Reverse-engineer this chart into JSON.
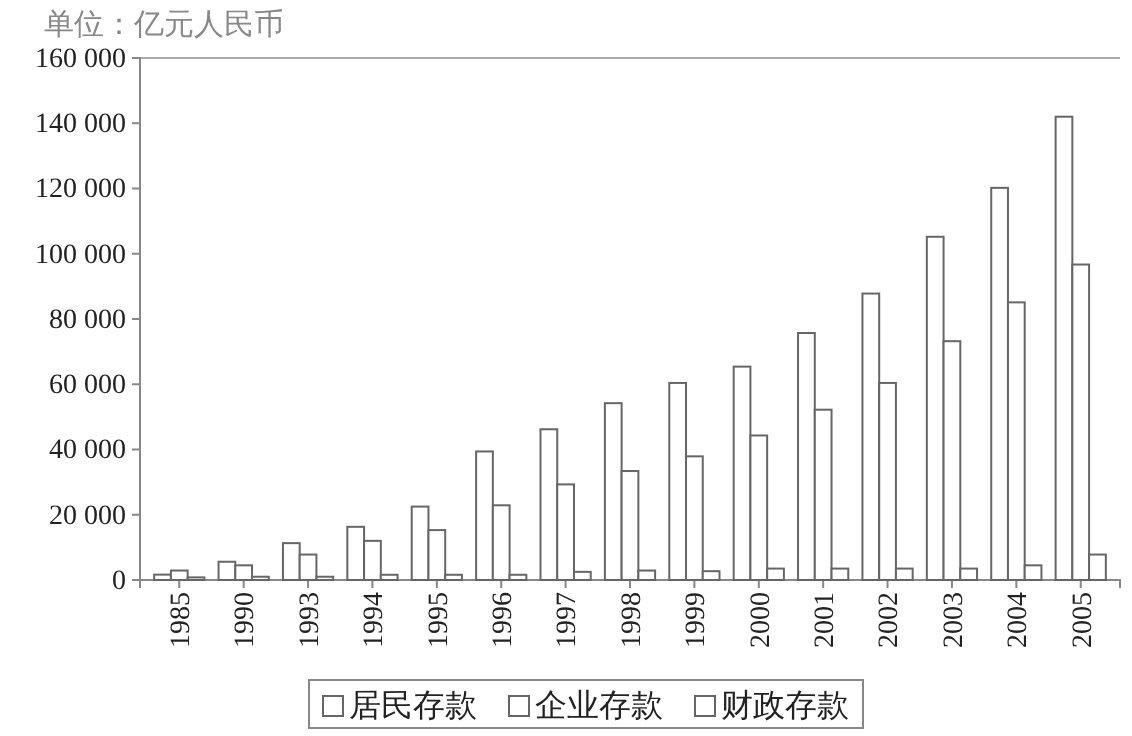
{
  "chart_data": {
    "type": "bar",
    "ylabel": "单位：亿元人民币",
    "categories": [
      "1985",
      "1990",
      "1993",
      "1994",
      "1995",
      "1996",
      "1997",
      "1998",
      "1999",
      "2000",
      "2001",
      "2002",
      "2003",
      "2004",
      "2005"
    ],
    "series": [
      {
        "name": "居民存款",
        "color": "#ffffff",
        "values": [
          1650,
          5600,
          11300,
          16300,
          22500,
          39400,
          46200,
          54200,
          60400,
          65400,
          75700,
          87800,
          105200,
          120200,
          142000
        ]
      },
      {
        "name": "企业存款",
        "color": "#ffffff",
        "values": [
          2900,
          4500,
          7800,
          12000,
          15300,
          22900,
          29300,
          33400,
          37900,
          44300,
          52200,
          60400,
          73200,
          85100,
          96700
        ]
      },
      {
        "name": "财政存款",
        "color": "#ffffff",
        "values": [
          800,
          1000,
          1000,
          1600,
          1600,
          1600,
          2500,
          2900,
          2700,
          3500,
          3500,
          3500,
          3500,
          4500,
          7800
        ]
      }
    ],
    "ylim": [
      0,
      160000
    ],
    "yticks": [
      {
        "value": 0,
        "label": "0"
      },
      {
        "value": 20000,
        "label": "20 000"
      },
      {
        "value": 40000,
        "label": "40 000"
      },
      {
        "value": 60000,
        "label": "60 000"
      },
      {
        "value": 80000,
        "label": "80 000"
      },
      {
        "value": 100000,
        "label": "100 000"
      },
      {
        "value": 120000,
        "label": "120 000"
      },
      {
        "value": 140000,
        "label": "140 000"
      },
      {
        "value": 160000,
        "label": "160 000"
      }
    ],
    "grid": false,
    "legend": "bottom"
  }
}
